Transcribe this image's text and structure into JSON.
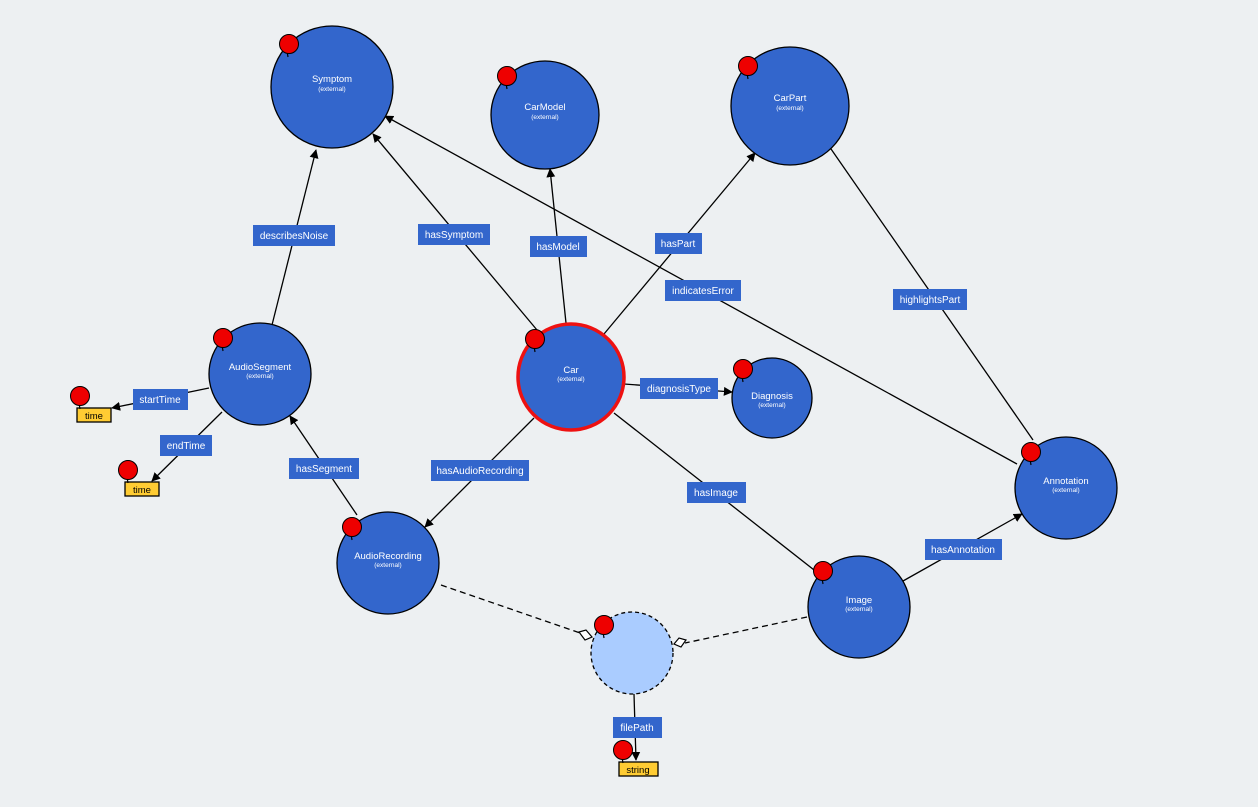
{
  "colors": {
    "background": "#edf0f2",
    "class_fill": "#3366cc",
    "selected_stroke": "#ee1111",
    "property_box": "#3366cc",
    "datatype_fill": "#ffcc33",
    "pin": "#ee0000",
    "anonymous_fill": "#aaccff"
  },
  "nodes": {
    "symptom": {
      "label": "Symptom",
      "sub": "(external)"
    },
    "carmodel": {
      "label": "CarModel",
      "sub": "(external)"
    },
    "carpart": {
      "label": "CarPart",
      "sub": "(external)"
    },
    "audiosegment": {
      "label": "AudioSegment",
      "sub": "(external)"
    },
    "car": {
      "label": "Car",
      "sub": "(external)"
    },
    "diagnosis": {
      "label": "Diagnosis",
      "sub": "(external)"
    },
    "annotation": {
      "label": "Annotation",
      "sub": "(external)"
    },
    "audiorecording": {
      "label": "AudioRecording",
      "sub": "(external)"
    },
    "image": {
      "label": "Image",
      "sub": "(external)"
    },
    "anon": {
      "label": "",
      "sub": ""
    }
  },
  "datatypes": {
    "time1": {
      "label": "time"
    },
    "time2": {
      "label": "time"
    },
    "string": {
      "label": "string"
    }
  },
  "edges": {
    "describesNoise": "describesNoise",
    "hasSymptom": "hasSymptom",
    "hasModel": "hasModel",
    "hasPart": "hasPart",
    "indicatesError": "indicatesError",
    "highlightsPart": "highlightsPart",
    "startTime": "startTime",
    "endTime": "endTime",
    "diagnosisType": "diagnosisType",
    "hasSegment": "hasSegment",
    "hasAudioRecording": "hasAudioRecording",
    "hasImage": "hasImage",
    "hasAnnotation": "hasAnnotation",
    "filePath": "filePath"
  }
}
